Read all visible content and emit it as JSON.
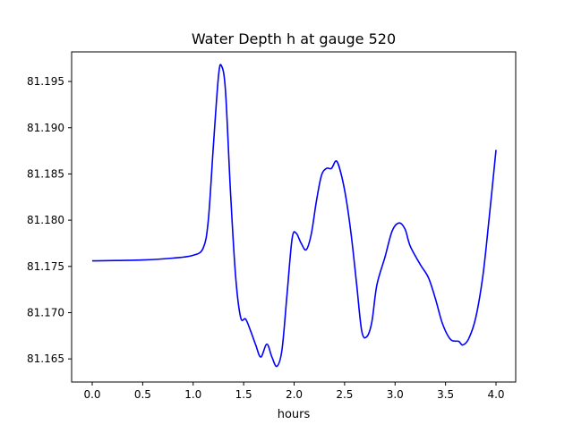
{
  "chart_data": {
    "type": "line",
    "title": "Water Depth h at gauge 520",
    "xlabel": "hours",
    "ylabel": "",
    "xlim": [
      -0.204,
      4.195
    ],
    "ylim": [
      81.1625,
      81.1982
    ],
    "xticks": [
      0.0,
      0.5,
      1.0,
      1.5,
      2.0,
      2.5,
      3.0,
      3.5,
      4.0
    ],
    "xtick_labels": [
      "0.0",
      "0.5",
      "1.0",
      "1.5",
      "2.0",
      "2.5",
      "3.0",
      "3.5",
      "4.0"
    ],
    "yticks": [
      81.165,
      81.17,
      81.175,
      81.18,
      81.185,
      81.19,
      81.195
    ],
    "ytick_labels": [
      "81.165",
      "81.170",
      "81.175",
      "81.180",
      "81.185",
      "81.190",
      "81.195"
    ],
    "grid": false,
    "series": [
      {
        "name": "h",
        "color": "#0000ff",
        "x": [
          0.0,
          0.5,
          0.8,
          1.0,
          1.1,
          1.15,
          1.2,
          1.25,
          1.28,
          1.32,
          1.37,
          1.42,
          1.47,
          1.52,
          1.57,
          1.62,
          1.67,
          1.73,
          1.78,
          1.83,
          1.88,
          1.93,
          1.98,
          2.02,
          2.07,
          2.12,
          2.17,
          2.22,
          2.27,
          2.32,
          2.37,
          2.42,
          2.47,
          2.52,
          2.57,
          2.62,
          2.67,
          2.72,
          2.77,
          2.82,
          2.9,
          2.97,
          3.04,
          3.1,
          3.15,
          3.25,
          3.33,
          3.4,
          3.47,
          3.55,
          3.63,
          3.67,
          3.73,
          3.8,
          3.87,
          3.93,
          4.0
        ],
        "y": [
          81.1756,
          81.1757,
          81.1759,
          81.1762,
          81.177,
          81.18,
          81.188,
          81.1955,
          81.1967,
          81.194,
          81.183,
          81.174,
          81.1695,
          81.1693,
          81.168,
          81.1665,
          81.1652,
          81.1666,
          81.1652,
          81.1642,
          81.166,
          81.172,
          81.178,
          81.1786,
          81.1775,
          81.1768,
          81.1785,
          81.182,
          81.1848,
          81.1856,
          81.1856,
          81.1864,
          81.1848,
          81.182,
          81.178,
          81.173,
          81.168,
          81.1674,
          81.169,
          81.173,
          81.176,
          81.1788,
          81.1797,
          81.179,
          81.1772,
          81.1752,
          81.1738,
          81.1715,
          81.1688,
          81.1671,
          81.1669,
          81.1665,
          81.1672,
          81.1695,
          81.174,
          81.18,
          81.1876
        ]
      }
    ]
  }
}
